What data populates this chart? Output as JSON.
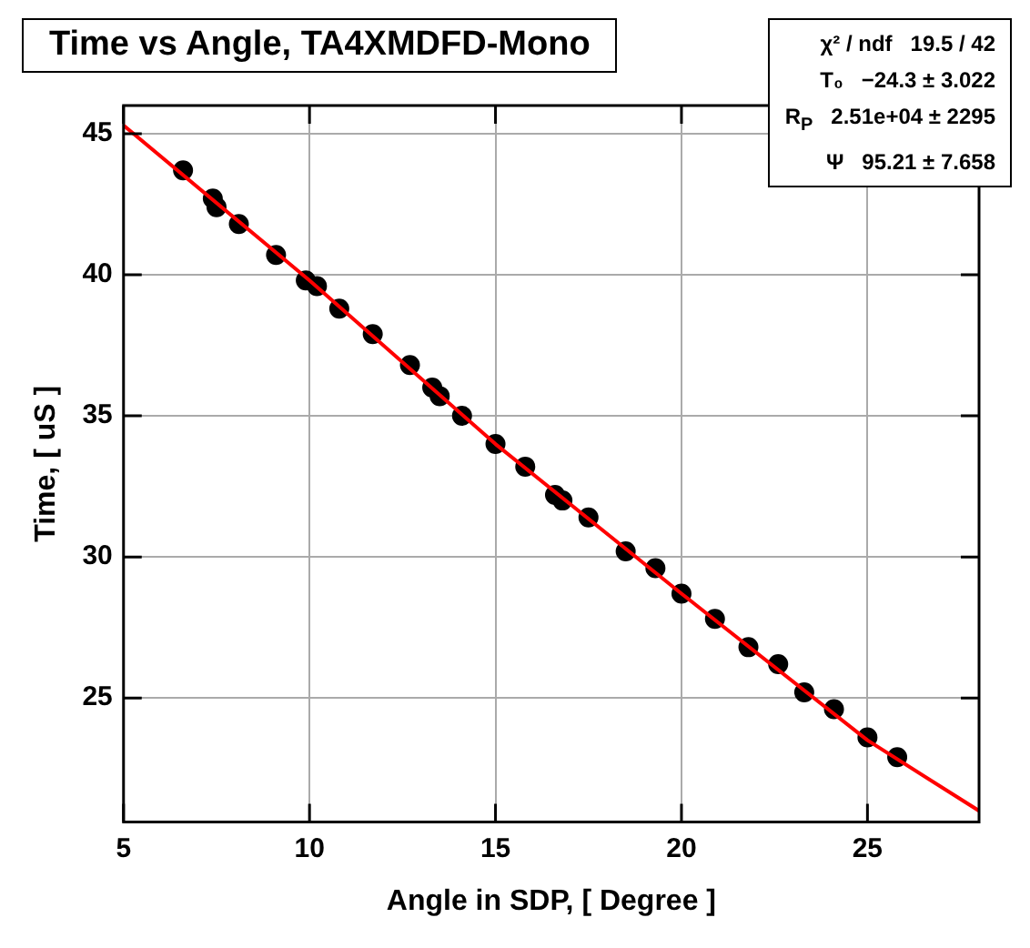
{
  "chart_data": {
    "type": "scatter",
    "title": "Time vs Angle, TA4XMDFD-Mono",
    "xlabel": "Angle in SDP, [ Degree ]",
    "ylabel": "Time, [ uS ]",
    "series": [
      {
        "marker": "circle",
        "color": "#000000",
        "x": [
          6.6,
          7.4,
          7.5,
          8.1,
          9.1,
          9.9,
          10.2,
          10.8,
          11.7,
          12.7,
          13.3,
          13.5,
          14.1,
          15.0,
          15.8,
          16.6,
          16.8,
          17.5,
          18.5,
          19.3,
          20.0,
          20.9,
          21.8,
          22.6,
          23.3,
          24.1,
          25.0,
          25.8
        ],
        "values": [
          43.7,
          42.7,
          42.4,
          41.8,
          40.7,
          39.8,
          39.6,
          38.8,
          37.9,
          36.8,
          36.0,
          35.7,
          35.0,
          34.0,
          33.2,
          32.2,
          32.0,
          31.4,
          30.2,
          29.6,
          28.7,
          27.8,
          26.8,
          26.2,
          25.2,
          24.6,
          23.6,
          22.9
        ]
      },
      {
        "type": "line",
        "marker": "none",
        "color": "#ff0000",
        "x": [
          5,
          10,
          15,
          20,
          25,
          28
        ],
        "values": [
          45.3,
          39.8,
          34.0,
          28.7,
          23.5,
          21.0
        ]
      }
    ],
    "xlim": [
      5,
      28
    ],
    "ylim": [
      20.6,
      46
    ],
    "xticks": [
      5,
      10,
      15,
      20,
      25
    ],
    "yticks": [
      25,
      30,
      35,
      40,
      45
    ],
    "grid": true,
    "legend": false,
    "line_style": "solid",
    "annotations": [
      "χ² / ndf   19.5 / 42",
      "T₀   −24.3 ± 3.022",
      "R$_{P}$   2.51e+04 ± 2295",
      "Ψ   95.21 ± 7.658"
    ]
  }
}
